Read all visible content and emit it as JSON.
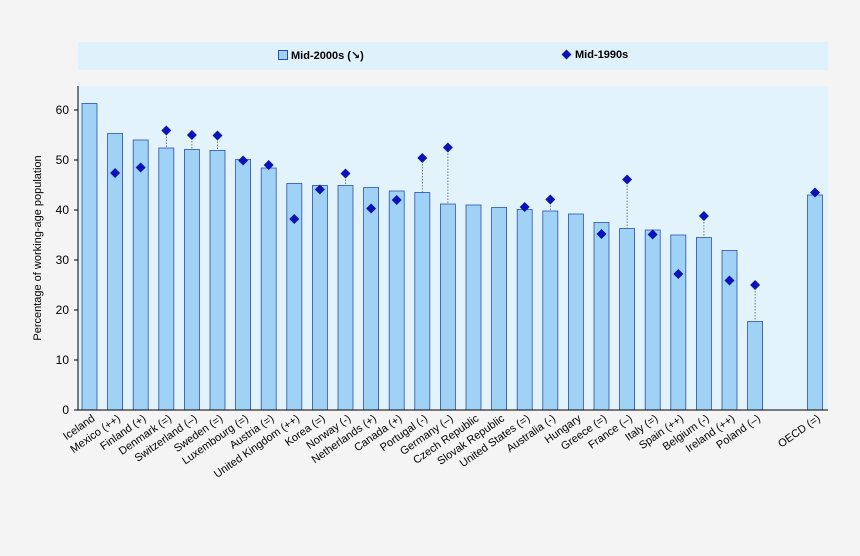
{
  "legend": {
    "bar_label": "Mid-2000s (↘)",
    "marker_label": "Mid-1990s",
    "position": "top"
  },
  "colors": {
    "bar_fill": "#9fd2f5",
    "bar_stroke": "#2a4fb0",
    "marker": "#0a12b8",
    "plot_bg": "#e3f3fc",
    "page_bg": "#f4f4f4"
  },
  "chart_data": {
    "type": "bar",
    "title": "",
    "xlabel": "",
    "ylabel": "Percentage of working-age population",
    "ylim": [
      0,
      65
    ],
    "yticks": [
      0,
      10,
      20,
      30,
      40,
      50,
      60
    ],
    "grid": false,
    "categories": [
      "Iceland",
      "Mexico (++)",
      "Finland (+)",
      "Denmark (=)",
      "Switzerland (–)",
      "Sweden (=)",
      "Luxembourg (=)",
      "Austria (=)",
      "United Kingdom (++)",
      "Korea (=)",
      "Norway (-)",
      "Netherlands (+)",
      "Canada (+)",
      "Portugal (-)",
      "Germany (–)",
      "Czech Republic",
      "Slovak Republic",
      "United States (=)",
      "Australia (-)",
      "Hungary",
      "Greece (=)",
      "France (–)",
      "Italy (=)",
      "Spain (++)",
      "Belgium (-)",
      "Ireland (++)",
      "Poland (–)",
      "OECD (=)"
    ],
    "series": [
      {
        "name": "Mid-2000s (↘)",
        "kind": "bar",
        "values": [
          61.3,
          55.3,
          54.0,
          52.4,
          52.1,
          51.9,
          50.1,
          48.4,
          45.3,
          44.9,
          44.9,
          44.5,
          43.8,
          43.5,
          41.2,
          41.0,
          40.5,
          40.1,
          39.8,
          39.2,
          37.5,
          36.3,
          36.0,
          35.0,
          34.5,
          31.9,
          17.7,
          43.0
        ]
      },
      {
        "name": "Mid-1990s",
        "kind": "marker",
        "values": [
          null,
          47.4,
          48.5,
          55.9,
          55.0,
          54.9,
          49.9,
          49.0,
          38.2,
          44.1,
          47.3,
          40.3,
          42.0,
          50.4,
          52.5,
          null,
          null,
          40.6,
          42.1,
          null,
          35.2,
          46.1,
          35.1,
          27.2,
          38.8,
          25.9,
          25.0,
          43.5
        ]
      }
    ]
  }
}
